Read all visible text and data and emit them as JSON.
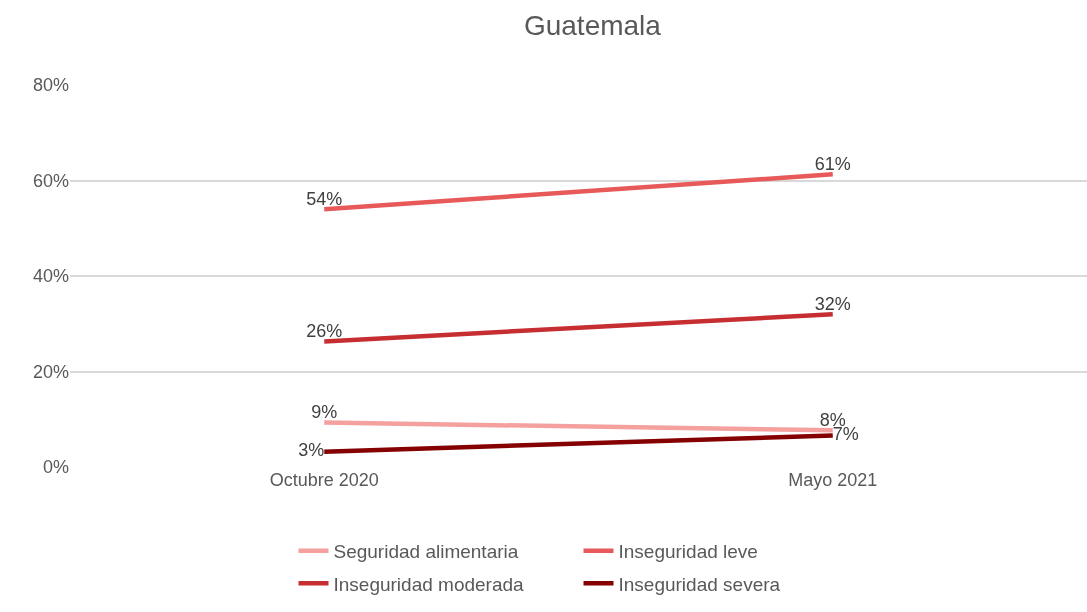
{
  "chart_data": {
    "type": "line",
    "title": "Guatemala",
    "categories": [
      "Octubre 2020",
      "Mayo 2021"
    ],
    "series": [
      {
        "name": "Seguridad alimentaria",
        "color": "#f4a09e",
        "values": [
          9.3,
          7.7
        ],
        "value_labels": [
          "9%",
          "8%"
        ]
      },
      {
        "name": "Inseguridad leve",
        "color": "#e85a5a",
        "values": [
          54.0,
          61.3
        ],
        "value_labels": [
          "54%",
          "61%"
        ]
      },
      {
        "name": "Inseguridad moderada",
        "color": "#c62e32",
        "values": [
          26.3,
          32.0
        ],
        "value_labels": [
          "26%",
          "32%"
        ]
      },
      {
        "name": "Inseguridad severa",
        "color": "#850000",
        "values": [
          3.2,
          6.6
        ],
        "value_labels": [
          "3%",
          "7%"
        ]
      }
    ],
    "ylim": [
      0,
      80
    ],
    "yticks": [
      {
        "value": 0,
        "label": "0%"
      },
      {
        "value": 20,
        "label": "20%"
      },
      {
        "value": 40,
        "label": "40%"
      },
      {
        "value": 60,
        "label": "60%"
      },
      {
        "value": 80,
        "label": "80%"
      }
    ],
    "grid": "y",
    "legend": "bottom",
    "marker": "none",
    "line_style": "solid"
  }
}
